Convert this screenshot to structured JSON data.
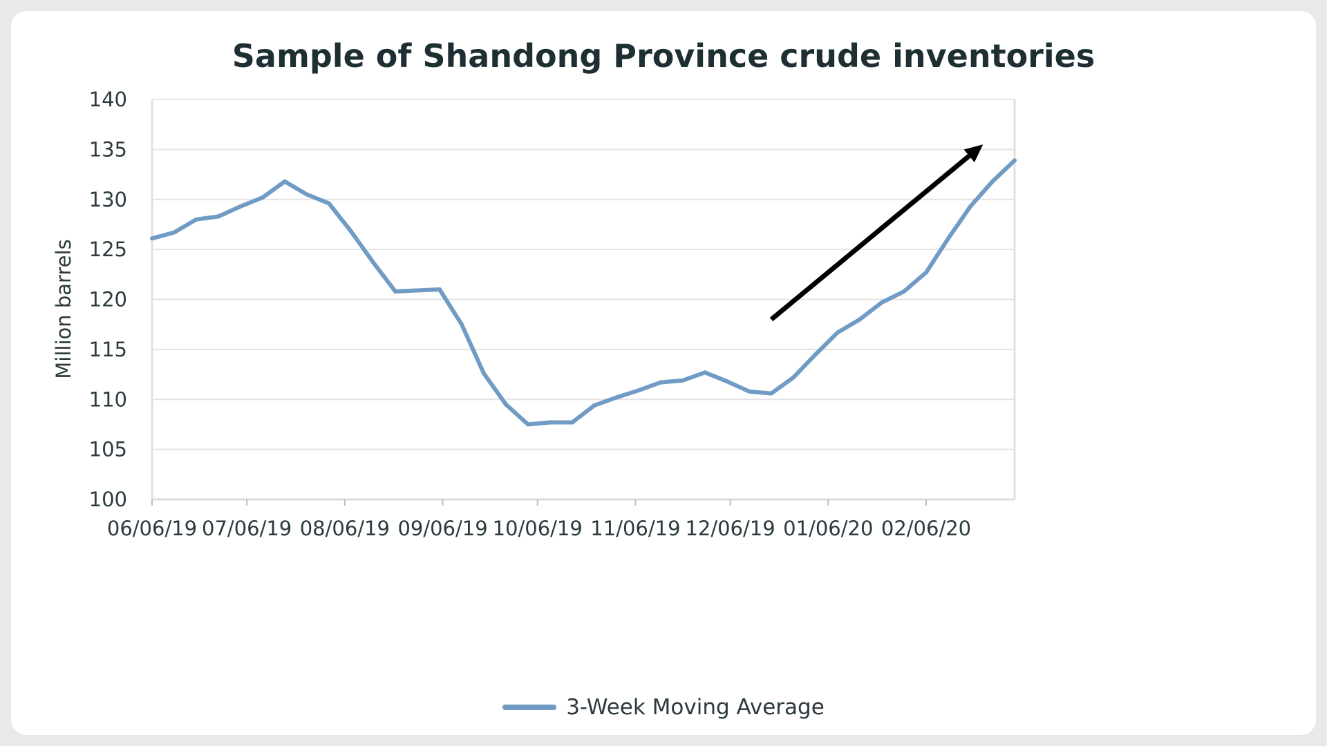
{
  "chart_data": {
    "type": "line",
    "title": "Sample of Shandong Province crude inventories",
    "ylabel": "Million barrels",
    "xlabel": "",
    "ylim": [
      100,
      140
    ],
    "yticks": [
      100,
      105,
      110,
      115,
      120,
      125,
      130,
      135,
      140
    ],
    "x_tick_labels": [
      "06/06/19",
      "07/06/19",
      "08/06/19",
      "09/06/19",
      "10/06/19",
      "11/06/19",
      "12/06/19",
      "01/06/20",
      "02/06/20"
    ],
    "x_tick_dates": [
      "2019-06-06",
      "2019-07-06",
      "2019-08-06",
      "2019-09-06",
      "2019-10-06",
      "2019-11-06",
      "2019-12-06",
      "2020-01-06",
      "2020-02-06"
    ],
    "x_range": [
      "2019-06-06",
      "2020-03-05"
    ],
    "grid": "horizontal",
    "legend_position": "bottom",
    "series": [
      {
        "name": "3-Week Moving Average",
        "color": "#6f9bc4",
        "x": [
          "2019-06-06",
          "2019-06-13",
          "2019-06-20",
          "2019-06-27",
          "2019-07-04",
          "2019-07-11",
          "2019-07-18",
          "2019-07-25",
          "2019-08-01",
          "2019-08-08",
          "2019-08-15",
          "2019-08-22",
          "2019-09-05",
          "2019-09-12",
          "2019-09-19",
          "2019-09-26",
          "2019-10-03",
          "2019-10-10",
          "2019-10-17",
          "2019-10-24",
          "2019-10-31",
          "2019-11-07",
          "2019-11-14",
          "2019-11-21",
          "2019-11-28",
          "2019-12-05",
          "2019-12-12",
          "2019-12-19",
          "2019-12-26",
          "2020-01-02",
          "2020-01-09",
          "2020-01-16",
          "2020-01-23",
          "2020-01-30",
          "2020-02-06",
          "2020-02-13",
          "2020-02-20",
          "2020-02-27",
          "2020-03-05"
        ],
        "values": [
          126.1,
          126.7,
          128.0,
          128.3,
          129.3,
          130.2,
          131.8,
          130.5,
          129.6,
          126.8,
          123.7,
          120.8,
          121.0,
          117.5,
          112.6,
          109.5,
          107.5,
          107.7,
          107.7,
          109.4,
          110.2,
          110.9,
          111.7,
          111.9,
          112.7,
          111.8,
          110.8,
          110.6,
          112.2,
          114.5,
          116.7,
          118.0,
          119.7,
          120.8,
          122.7,
          126.1,
          129.3,
          131.8,
          133.9
        ]
      }
    ],
    "annotations": [
      {
        "type": "arrow",
        "from": [
          "2019-12-19",
          118.0
        ],
        "to": [
          "2020-02-24",
          135.5
        ],
        "color": "#000000"
      }
    ]
  }
}
